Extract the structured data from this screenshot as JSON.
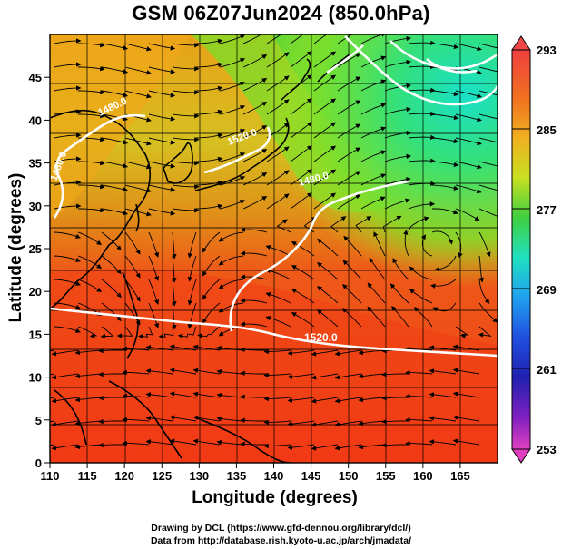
{
  "title": "GSM 06Z07Jun2024 (850.0hPa)",
  "axes": {
    "xlabel": "Longitude (degrees)",
    "ylabel": "Latitude  (degrees)",
    "xticks": [
      "110",
      "115",
      "120",
      "125",
      "130",
      "135",
      "140",
      "145",
      "150",
      "155",
      "160",
      "165"
    ],
    "yticks": [
      "0",
      "5",
      "10",
      "15",
      "20",
      "25",
      "30",
      "35",
      "40",
      "45"
    ]
  },
  "colorbar": {
    "labels": [
      "293",
      "285",
      "277",
      "269",
      "261",
      "253"
    ]
  },
  "contour_labels": [
    "1520.0",
    "1480.0",
    "1480.0",
    "1480.0",
    "1520.0"
  ],
  "credits": {
    "line1": "Drawing by DCL (https://www.gfd-dennou.org/library/dcl/)",
    "line2": "Data from http://database.rish.kyoto-u.ac.jp/arch/jmadata/"
  },
  "map_data": {
    "projection": "equirectangular",
    "lon_range": [
      110,
      170
    ],
    "lat_range": [
      0,
      50
    ],
    "variable": "temperature (K) with streamlines and geopotential height contours",
    "colorbar_range": [
      253,
      293
    ]
  }
}
